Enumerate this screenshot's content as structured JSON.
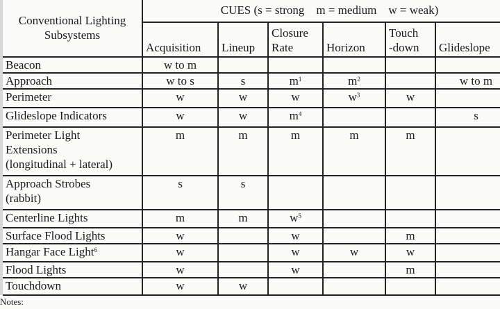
{
  "cues_title": "CUES (s = strong    m = medium    w = weak)",
  "row_header": [
    "Conventional Lighting",
    "Subsystems"
  ],
  "columns": [
    [
      "Acquisition"
    ],
    [
      "Lineup"
    ],
    [
      "Closure",
      "Rate"
    ],
    [
      "Horizon"
    ],
    [
      "Touch",
      "-down"
    ],
    [
      "Glideslope"
    ]
  ],
  "rows": [
    {
      "label": [
        "Beacon"
      ],
      "cells": [
        {
          "v": "w to m"
        },
        {
          "v": ""
        },
        {
          "v": ""
        },
        {
          "v": ""
        },
        {
          "v": ""
        },
        {
          "v": ""
        }
      ]
    },
    {
      "label": [
        "Approach"
      ],
      "cells": [
        {
          "v": "w to s"
        },
        {
          "v": "s"
        },
        {
          "v": "m",
          "sup": "1"
        },
        {
          "v": "m",
          "sup": "2"
        },
        {
          "v": ""
        },
        {
          "v": "w to m"
        }
      ]
    },
    {
      "label": [
        "Perimeter"
      ],
      "cells": [
        {
          "v": "w"
        },
        {
          "v": "w"
        },
        {
          "v": "w"
        },
        {
          "v": "w",
          "sup": "3"
        },
        {
          "v": "w"
        },
        {
          "v": ""
        }
      ]
    },
    {
      "label": [
        "Glideslope Indicators"
      ],
      "cells": [
        {
          "v": "w"
        },
        {
          "v": "w"
        },
        {
          "v": "m",
          "sup": "4"
        },
        {
          "v": ""
        },
        {
          "v": ""
        },
        {
          "v": "s"
        }
      ]
    },
    {
      "label": [
        "Perimeter Light",
        "Extensions",
        "(longitudinal + lateral)"
      ],
      "cells": [
        {
          "v": "m"
        },
        {
          "v": "m"
        },
        {
          "v": "m"
        },
        {
          "v": "m"
        },
        {
          "v": "m"
        },
        {
          "v": ""
        }
      ]
    },
    {
      "label": [
        "Approach Strobes",
        "(rabbit)"
      ],
      "cells": [
        {
          "v": "s"
        },
        {
          "v": "s"
        },
        {
          "v": ""
        },
        {
          "v": ""
        },
        {
          "v": ""
        },
        {
          "v": ""
        }
      ]
    },
    {
      "label": [
        "Centerline Lights"
      ],
      "cells": [
        {
          "v": "m"
        },
        {
          "v": "m"
        },
        {
          "v": "w",
          "sup": "5"
        },
        {
          "v": ""
        },
        {
          "v": ""
        },
        {
          "v": ""
        }
      ]
    },
    {
      "label": [
        "Surface Flood Lights"
      ],
      "cells": [
        {
          "v": "w"
        },
        {
          "v": ""
        },
        {
          "v": "w"
        },
        {
          "v": ""
        },
        {
          "v": "m"
        },
        {
          "v": ""
        }
      ]
    },
    {
      "label": [
        "Hangar Face Light"
      ],
      "label_sup": "6",
      "cells": [
        {
          "v": "w"
        },
        {
          "v": ""
        },
        {
          "v": "w"
        },
        {
          "v": "w"
        },
        {
          "v": "w"
        },
        {
          "v": ""
        }
      ]
    },
    {
      "label": [
        "Flood Lights"
      ],
      "cells": [
        {
          "v": "w"
        },
        {
          "v": ""
        },
        {
          "v": "w"
        },
        {
          "v": ""
        },
        {
          "v": "m"
        },
        {
          "v": ""
        }
      ]
    },
    {
      "label": [
        "Touchdown"
      ],
      "cells": [
        {
          "v": "w"
        },
        {
          "v": "w"
        },
        {
          "v": ""
        },
        {
          "v": ""
        },
        {
          "v": ""
        },
        {
          "v": ""
        }
      ]
    }
  ],
  "notes_label": "Notes:"
}
